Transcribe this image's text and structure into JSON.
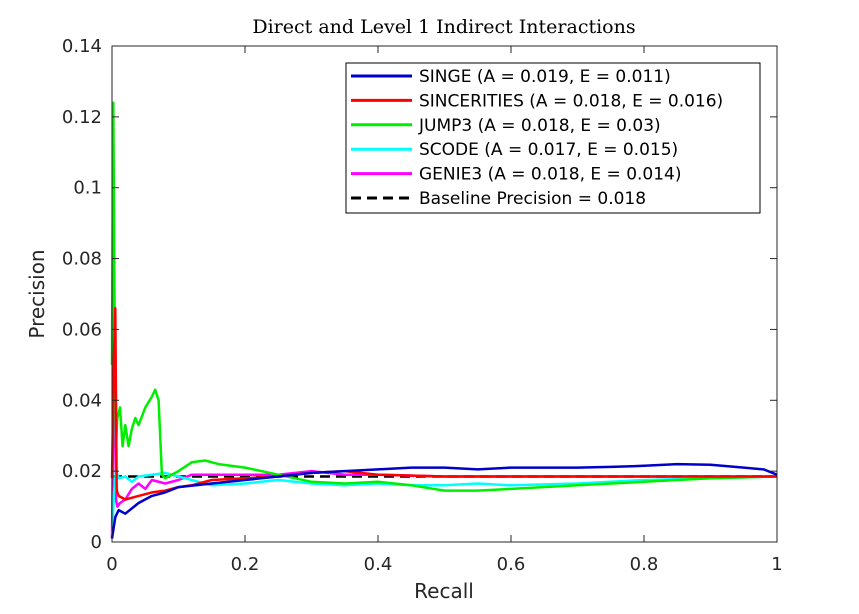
{
  "chart_data": {
    "type": "line",
    "title": "Direct and Level 1 Indirect Interactions",
    "xlabel": "Recall",
    "ylabel": "Precision",
    "xlim": [
      0,
      1
    ],
    "ylim": [
      0,
      0.14
    ],
    "xticks": [
      0,
      0.2,
      0.4,
      0.6,
      0.8,
      1
    ],
    "xtick_labels": [
      "0",
      "0.2",
      "0.4",
      "0.6",
      "0.8",
      "1"
    ],
    "yticks": [
      0,
      0.02,
      0.04,
      0.06,
      0.08,
      0.1,
      0.12,
      0.14
    ],
    "ytick_labels": [
      "0",
      "0.02",
      "0.04",
      "0.06",
      "0.08",
      "0.1",
      "0.12",
      "0.14"
    ],
    "grid": false,
    "legend_position": "top-right",
    "series": [
      {
        "name": "SINGE (A = 0.019, E = 0.011)",
        "color": "#0000cc",
        "dash": false,
        "x": [
          0,
          0.005,
          0.01,
          0.02,
          0.04,
          0.06,
          0.08,
          0.1,
          0.15,
          0.2,
          0.25,
          0.3,
          0.35,
          0.4,
          0.45,
          0.5,
          0.55,
          0.6,
          0.65,
          0.7,
          0.75,
          0.8,
          0.85,
          0.9,
          0.95,
          0.98,
          1
        ],
        "y": [
          0.001,
          0.007,
          0.009,
          0.008,
          0.011,
          0.013,
          0.014,
          0.0155,
          0.0165,
          0.0175,
          0.0185,
          0.0195,
          0.02,
          0.0205,
          0.021,
          0.021,
          0.0205,
          0.021,
          0.021,
          0.021,
          0.0212,
          0.0215,
          0.022,
          0.0218,
          0.021,
          0.0205,
          0.019
        ]
      },
      {
        "name": "SINCERITIES (A = 0.018, E = 0.016)",
        "color": "#ff0000",
        "dash": false,
        "x": [
          0,
          0.003,
          0.005,
          0.007,
          0.008,
          0.01,
          0.02,
          0.04,
          0.06,
          0.08,
          0.1,
          0.12,
          0.15,
          0.2,
          0.25,
          0.3,
          0.35,
          0.4,
          0.5,
          0.6,
          0.7,
          0.8,
          0.9,
          1
        ],
        "y": [
          0.018,
          0.053,
          0.066,
          0.015,
          0.014,
          0.013,
          0.012,
          0.013,
          0.014,
          0.0145,
          0.0155,
          0.016,
          0.0175,
          0.018,
          0.0185,
          0.0195,
          0.02,
          0.019,
          0.0185,
          0.0185,
          0.0185,
          0.0185,
          0.0185,
          0.0185
        ]
      },
      {
        "name": "JUMP3 (A = 0.018, E = 0.03)",
        "color": "#00ee00",
        "dash": false,
        "x": [
          0,
          0.002,
          0.004,
          0.006,
          0.008,
          0.012,
          0.016,
          0.02,
          0.025,
          0.03,
          0.035,
          0.04,
          0.05,
          0.06,
          0.065,
          0.07,
          0.075,
          0.08,
          0.1,
          0.12,
          0.14,
          0.16,
          0.2,
          0.25,
          0.3,
          0.35,
          0.4,
          0.45,
          0.5,
          0.55,
          0.6,
          0.7,
          0.8,
          0.9,
          1
        ],
        "y": [
          0.05,
          0.124,
          0.06,
          0.027,
          0.035,
          0.038,
          0.027,
          0.033,
          0.027,
          0.032,
          0.035,
          0.033,
          0.038,
          0.041,
          0.043,
          0.04,
          0.019,
          0.018,
          0.02,
          0.0225,
          0.023,
          0.022,
          0.021,
          0.019,
          0.017,
          0.0165,
          0.017,
          0.016,
          0.0145,
          0.0145,
          0.015,
          0.016,
          0.017,
          0.018,
          0.0185
        ]
      },
      {
        "name": "SCODE (A = 0.017, E = 0.015)",
        "color": "#00ffff",
        "dash": false,
        "x": [
          0,
          0.003,
          0.006,
          0.01,
          0.02,
          0.03,
          0.04,
          0.06,
          0.08,
          0.1,
          0.15,
          0.2,
          0.25,
          0.3,
          0.35,
          0.4,
          0.45,
          0.5,
          0.55,
          0.6,
          0.7,
          0.8,
          0.9,
          1
        ],
        "y": [
          0.001,
          0.014,
          0.02,
          0.018,
          0.0185,
          0.017,
          0.0185,
          0.019,
          0.0195,
          0.0185,
          0.016,
          0.0165,
          0.0175,
          0.0165,
          0.016,
          0.0165,
          0.016,
          0.016,
          0.0165,
          0.016,
          0.0165,
          0.0175,
          0.018,
          0.0185
        ]
      },
      {
        "name": "GENIE3 (A = 0.018, E = 0.014)",
        "color": "#ff00ff",
        "dash": false,
        "x": [
          0,
          0.002,
          0.004,
          0.006,
          0.008,
          0.012,
          0.02,
          0.03,
          0.04,
          0.05,
          0.06,
          0.08,
          0.1,
          0.12,
          0.15,
          0.2,
          0.25,
          0.3,
          0.35,
          0.4,
          0.5,
          0.6,
          0.7,
          0.8,
          0.9,
          1
        ],
        "y": [
          0.001,
          0.04,
          0.045,
          0.012,
          0.01,
          0.011,
          0.012,
          0.015,
          0.0165,
          0.015,
          0.0175,
          0.0165,
          0.0175,
          0.019,
          0.019,
          0.019,
          0.019,
          0.02,
          0.019,
          0.019,
          0.0185,
          0.0185,
          0.0185,
          0.0185,
          0.0185,
          0.0185
        ]
      },
      {
        "name": "Baseline Precision = 0.018",
        "color": "#000000",
        "dash": true,
        "x": [
          0,
          1
        ],
        "y": [
          0.0185,
          0.0185
        ]
      }
    ]
  }
}
